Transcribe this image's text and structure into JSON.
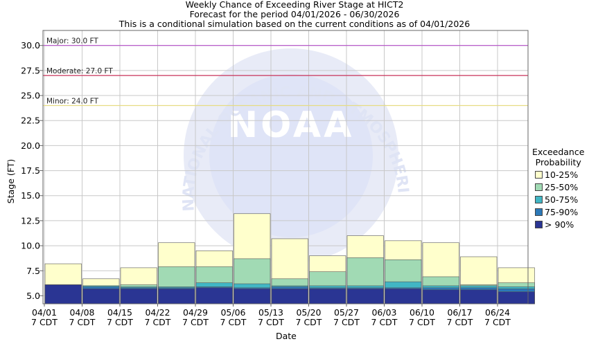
{
  "chart_data": {
    "type": "bar",
    "title": "Weekly Chance of Exceeding River Stage at HICT2",
    "subtitle": "Forecast for the period 04/01/2026 - 06/30/2026",
    "subtitle2": "This is a conditional simulation based on the current conditions as of 04/01/2026",
    "xlabel": "Date",
    "ylabel": "Stage (FT)",
    "ylim": [
      4.2,
      31.5
    ],
    "yticks": [
      5.0,
      7.5,
      10.0,
      12.5,
      15.0,
      17.5,
      20.0,
      22.5,
      25.0,
      27.5,
      30.0
    ],
    "ytick_labels": [
      "5.0",
      "7.5",
      "10.0",
      "12.5",
      "15.0",
      "17.5",
      "20.0",
      "22.5",
      "25.0",
      "27.5",
      "30.0"
    ],
    "categories": [
      "04/01",
      "04/08",
      "04/15",
      "04/22",
      "04/29",
      "05/06",
      "05/13",
      "05/20",
      "05/27",
      "06/03",
      "06/10",
      "06/17",
      "06/24"
    ],
    "x_sublabel": "7 CDT",
    "grid": true,
    "legend": {
      "title_line1": "Exceedance",
      "title_line2": "Probability",
      "placement": "right"
    },
    "series": [
      {
        "name": "> 90%",
        "color": "#2a3593",
        "values": [
          6.1,
          5.7,
          5.7,
          5.7,
          5.8,
          5.7,
          5.7,
          5.7,
          5.7,
          5.7,
          5.6,
          5.6,
          5.4
        ]
      },
      {
        "name": "75-90%",
        "color": "#2c79b8",
        "values": [
          6.1,
          5.9,
          5.8,
          5.8,
          5.9,
          5.8,
          5.9,
          5.8,
          5.8,
          5.8,
          5.8,
          5.8,
          5.7
        ]
      },
      {
        "name": "50-75%",
        "color": "#41b6c4",
        "values": [
          6.1,
          6.0,
          5.9,
          5.9,
          6.3,
          6.2,
          6.0,
          6.0,
          6.0,
          6.4,
          6.0,
          6.0,
          5.9
        ]
      },
      {
        "name": "25-50%",
        "color": "#a1dab4",
        "values": [
          6.1,
          6.0,
          6.1,
          7.9,
          7.9,
          8.7,
          6.7,
          7.4,
          8.8,
          8.6,
          6.9,
          6.1,
          6.3
        ]
      },
      {
        "name": "10-25%",
        "color": "#ffffcc",
        "values": [
          8.2,
          6.7,
          7.8,
          10.3,
          9.5,
          13.2,
          10.7,
          9.0,
          11.0,
          10.5,
          10.3,
          8.9,
          7.8
        ]
      }
    ],
    "flood_stages": [
      {
        "label": "Major: 30.0 FT",
        "value": 30.0,
        "color": "#b44dc8"
      },
      {
        "label": "Moderate: 27.0 FT",
        "value": 27.0,
        "color": "#c8325a"
      },
      {
        "label": "Minor: 24.0 FT",
        "value": 24.0,
        "color": "#e6dc82"
      }
    ],
    "watermark_text": {
      "logo": "NOAA",
      "ring": "NATIONAL OCEANIC AND ATMOSPHERIC ADMINISTRATION"
    }
  }
}
